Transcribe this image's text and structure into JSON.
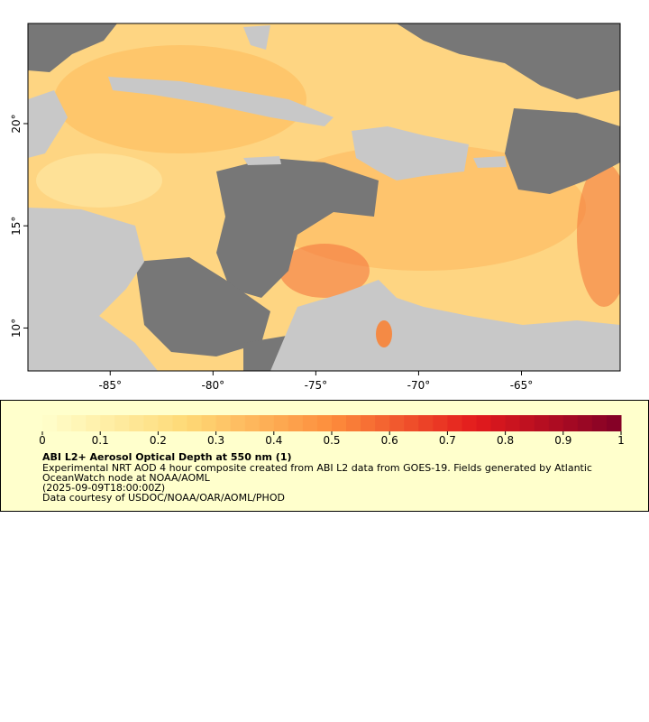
{
  "map": {
    "xlim": [
      -89,
      -60.2
    ],
    "ylim": [
      7.9,
      24.9
    ],
    "xticks": [
      {
        "value": -85,
        "label": "-85°"
      },
      {
        "value": -80,
        "label": "-80°"
      },
      {
        "value": -75,
        "label": "-75°"
      },
      {
        "value": -70,
        "label": "-70°"
      },
      {
        "value": -65,
        "label": "-65°"
      }
    ],
    "yticks": [
      {
        "value": 10,
        "label": "10°"
      },
      {
        "value": 15,
        "label": "15°"
      },
      {
        "value": 20,
        "label": "20°"
      }
    ]
  },
  "colorbar": {
    "range": [
      0,
      1
    ],
    "ticks": [
      0,
      0.1,
      0.2,
      0.3,
      0.4,
      0.5,
      0.6,
      0.7,
      0.8,
      0.9,
      1
    ]
  },
  "legend": {
    "title": "ABI L2+ Aerosol Optical Depth at 550 nm (1)",
    "lines": [
      "Experimental NRT AOD 4 hour composite created from ABI L2 data from GOES-19. Fields generated by Atlantic",
      "OceanWatch node at NOAA/AOML",
      "(2025-09-09T18:00:00Z)",
      "Data courtesy of USDOC/NOAA/OAR/AOML/PHOD"
    ]
  }
}
